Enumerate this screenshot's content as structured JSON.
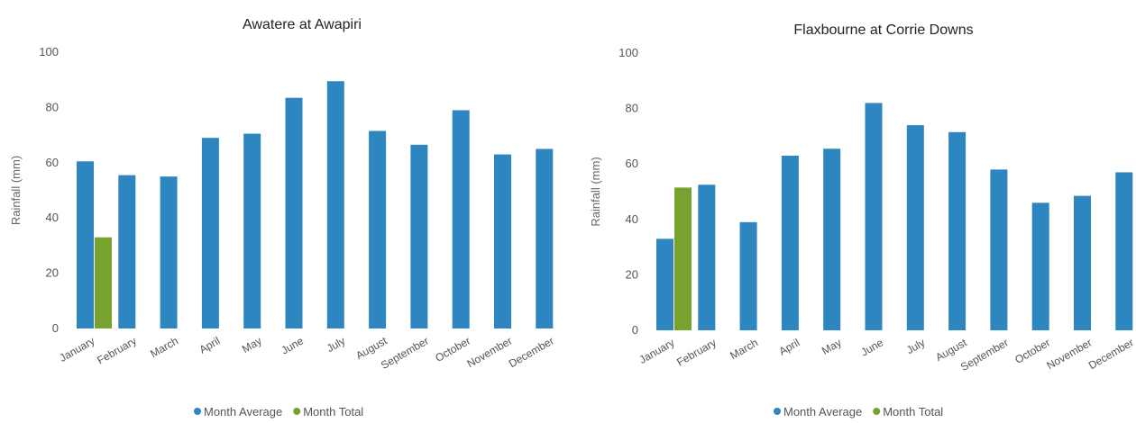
{
  "chart_data": [
    {
      "type": "bar",
      "title": "Awatere at Awapiri",
      "ylabel": "Rainfall (mm)",
      "xlabel": "",
      "ylim": [
        0,
        100
      ],
      "yticks": [
        0,
        20,
        40,
        60,
        80,
        100
      ],
      "grid": false,
      "legend_position": "bottom",
      "categories": [
        "January",
        "February",
        "March",
        "April",
        "May",
        "June",
        "July",
        "August",
        "September",
        "October",
        "November",
        "December"
      ],
      "series": [
        {
          "name": "Month Average",
          "color": "#2e86c1",
          "values": [
            60.5,
            55.5,
            55,
            69,
            70.5,
            83.5,
            89.5,
            71.5,
            66.5,
            79,
            63,
            65
          ]
        },
        {
          "name": "Month Total",
          "color": "#78a22f",
          "values": [
            33,
            null,
            null,
            null,
            null,
            null,
            null,
            null,
            null,
            null,
            null,
            null
          ]
        }
      ]
    },
    {
      "type": "bar",
      "title": "Flaxbourne at Corrie Downs",
      "ylabel": "Rainfall (mm)",
      "xlabel": "",
      "ylim": [
        0,
        100
      ],
      "yticks": [
        0,
        20,
        40,
        60,
        80,
        100
      ],
      "grid": false,
      "legend_position": "bottom",
      "categories": [
        "January",
        "February",
        "March",
        "April",
        "May",
        "June",
        "July",
        "August",
        "September",
        "October",
        "November",
        "December"
      ],
      "series": [
        {
          "name": "Month Average",
          "color": "#2e86c1",
          "values": [
            33,
            52.5,
            39,
            63,
            65.5,
            82,
            74,
            71.5,
            58,
            46,
            48.5,
            57
          ]
        },
        {
          "name": "Month Total",
          "color": "#78a22f",
          "values": [
            51.5,
            null,
            null,
            null,
            null,
            null,
            null,
            null,
            null,
            null,
            null,
            null
          ]
        }
      ]
    }
  ]
}
